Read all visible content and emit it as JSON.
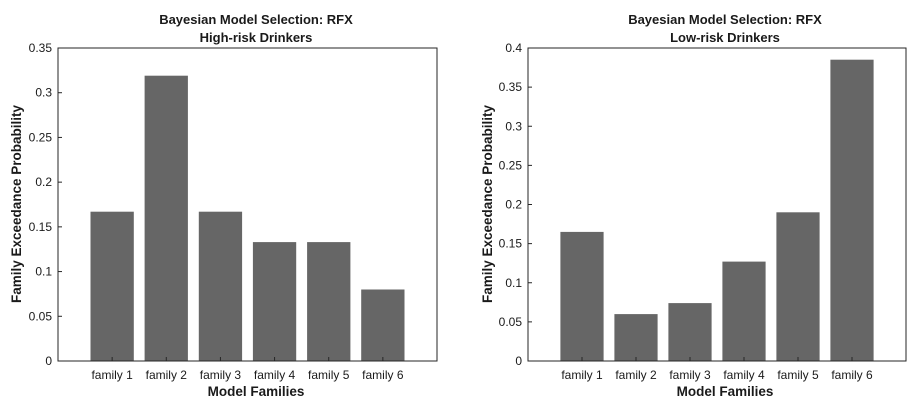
{
  "chart_data": [
    {
      "type": "bar",
      "title": "Bayesian Model Selection: RFX",
      "subtitle": "High-risk Drinkers",
      "xlabel": "Model Families",
      "ylabel": "Family Exceedance Probability",
      "categories": [
        "family 1",
        "family 2",
        "family 3",
        "family 4",
        "family 5",
        "family 6"
      ],
      "values": [
        0.167,
        0.319,
        0.167,
        0.133,
        0.133,
        0.08
      ],
      "ylim": [
        0,
        0.35
      ],
      "yticks": [
        0,
        0.05,
        0.1,
        0.15,
        0.2,
        0.25,
        0.3,
        0.35
      ],
      "ytick_labels": [
        "0",
        "0.05",
        "0.1",
        "0.15",
        "0.2",
        "0.25",
        "0.3",
        "0.35"
      ],
      "bar_color": "#666666",
      "grid": false,
      "legend": "none"
    },
    {
      "type": "bar",
      "title": "Bayesian Model Selection: RFX",
      "subtitle": "Low-risk Drinkers",
      "xlabel": "Model Families",
      "ylabel": "Family Exceedance Probability",
      "categories": [
        "family 1",
        "family 2",
        "family 3",
        "family 4",
        "family 5",
        "family 6"
      ],
      "values": [
        0.165,
        0.06,
        0.074,
        0.127,
        0.19,
        0.385
      ],
      "ylim": [
        0,
        0.4
      ],
      "yticks": [
        0,
        0.05,
        0.1,
        0.15,
        0.2,
        0.25,
        0.3,
        0.35,
        0.4
      ],
      "ytick_labels": [
        "0",
        "0.05",
        "0.1",
        "0.15",
        "0.2",
        "0.25",
        "0.3",
        "0.35",
        "0.4"
      ],
      "bar_color": "#666666",
      "grid": false,
      "legend": "none"
    }
  ]
}
